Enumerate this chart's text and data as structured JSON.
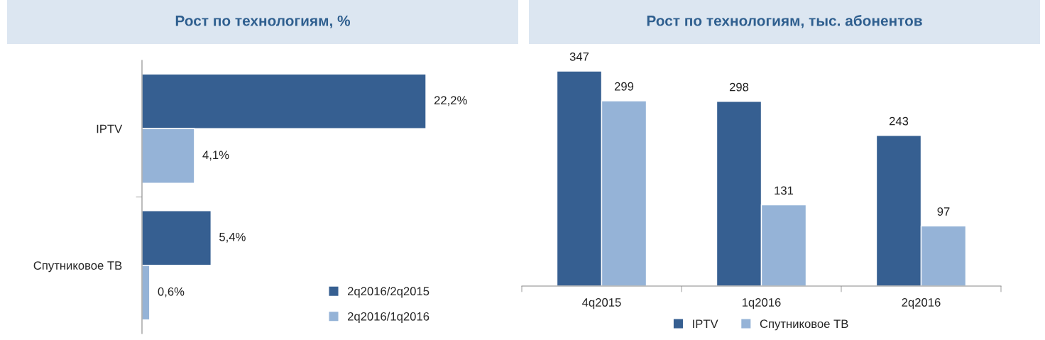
{
  "chart_data": [
    {
      "type": "bar",
      "title": "Рост по технологиям, %",
      "orientation": "horizontal",
      "categories": [
        "IPTV",
        "Спутниковое ТВ"
      ],
      "legend": "bottom right",
      "series": [
        {
          "name": "2q2016/2q2015",
          "color": "#365f91",
          "values": [
            22.2,
            5.4
          ],
          "value_labels": [
            "22,2%",
            "5,4%"
          ]
        },
        {
          "name": "2q2016/1q2016",
          "color": "#95b3d7",
          "values": [
            4.1,
            0.6
          ],
          "value_labels": [
            "4,1%",
            "0,6%"
          ]
        }
      ]
    },
    {
      "type": "bar",
      "title": "Рост по технологиям, тыс. абонентов",
      "categories": [
        "4q2015",
        "1q2016",
        "2q2016"
      ],
      "data_labels": true,
      "legend": "bottom",
      "series": [
        {
          "name": "IPTV",
          "color": "#365f91",
          "values": [
            347,
            298,
            243
          ]
        },
        {
          "name": "Спутниковое ТВ",
          "color": "#95b3d7",
          "values": [
            299,
            131,
            97
          ]
        }
      ]
    }
  ]
}
